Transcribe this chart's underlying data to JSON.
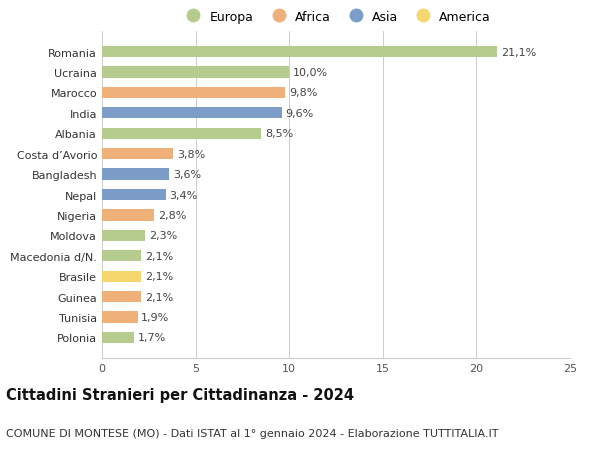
{
  "categories": [
    "Polonia",
    "Tunisia",
    "Guinea",
    "Brasile",
    "Macedonia d/N.",
    "Moldova",
    "Nigeria",
    "Nepal",
    "Bangladesh",
    "Costa d’Avorio",
    "Albania",
    "India",
    "Marocco",
    "Ucraina",
    "Romania"
  ],
  "values": [
    1.7,
    1.9,
    2.1,
    2.1,
    2.1,
    2.3,
    2.8,
    3.4,
    3.6,
    3.8,
    8.5,
    9.6,
    9.8,
    10.0,
    21.1
  ],
  "continents": [
    "Europa",
    "Africa",
    "Africa",
    "America",
    "Europa",
    "Europa",
    "Africa",
    "Asia",
    "Asia",
    "Africa",
    "Europa",
    "Asia",
    "Africa",
    "Europa",
    "Europa"
  ],
  "colors": {
    "Europa": "#b5cc8e",
    "Africa": "#f0b07a",
    "Asia": "#7b9dc7",
    "America": "#f5d76e"
  },
  "legend_order": [
    "Europa",
    "Africa",
    "Asia",
    "America"
  ],
  "xlim": [
    0,
    25
  ],
  "xticks": [
    0,
    5,
    10,
    15,
    20,
    25
  ],
  "title": "Cittadini Stranieri per Cittadinanza - 2024",
  "subtitle": "COMUNE DI MONTESE (MO) - Dati ISTAT al 1° gennaio 2024 - Elaborazione TUTTITALIA.IT",
  "title_fontsize": 10.5,
  "subtitle_fontsize": 8.0,
  "label_fontsize": 8.0,
  "tick_fontsize": 8.0,
  "legend_fontsize": 9.0,
  "bar_height": 0.55,
  "background_color": "#ffffff",
  "grid_color": "#cccccc"
}
